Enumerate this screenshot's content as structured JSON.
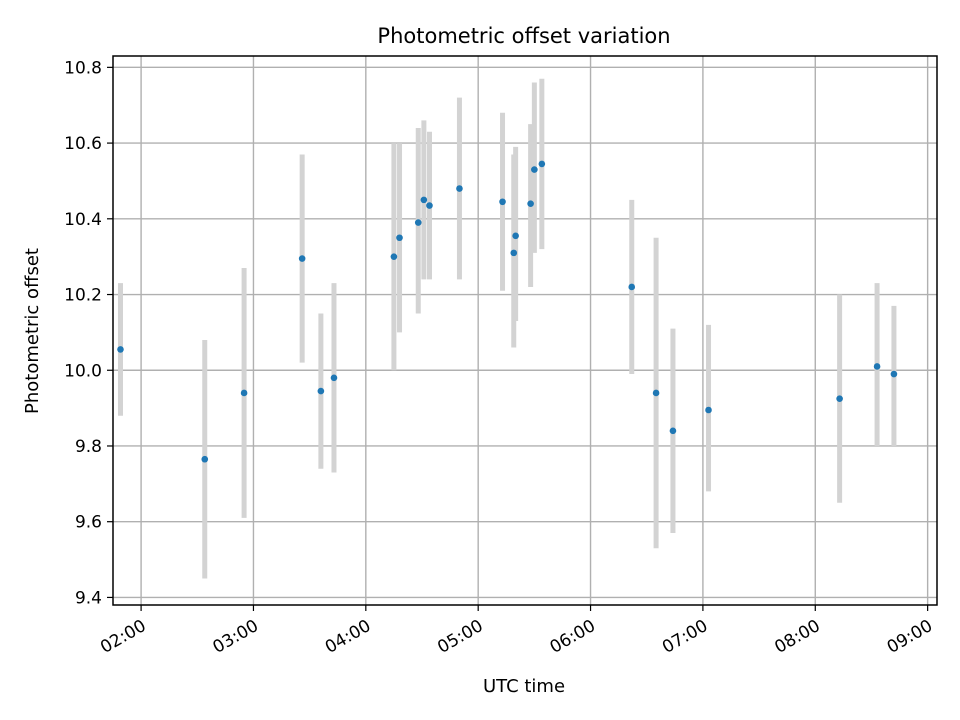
{
  "chart_data": {
    "type": "scatter",
    "title": "Photometric offset variation",
    "xlabel": "UTC time",
    "ylabel": "Photometric offset",
    "xlim": [
      "01:45",
      "09:05"
    ],
    "ylim": [
      9.38,
      10.83
    ],
    "grid": true,
    "x_ticks": [
      "02:00",
      "03:00",
      "04:00",
      "05:00",
      "06:00",
      "07:00",
      "08:00",
      "09:00"
    ],
    "y_ticks": [
      "9.4",
      "9.6",
      "9.8",
      "10.0",
      "10.2",
      "10.4",
      "10.6",
      "10.8"
    ],
    "y_tick_values": [
      9.4,
      9.6,
      9.8,
      10.0,
      10.2,
      10.4,
      10.6,
      10.8
    ],
    "colors": {
      "marker": "#1f77b4",
      "errorbar": "#d3d3d3",
      "grid": "#b0b0b0"
    },
    "series": [
      {
        "points": [
          {
            "x": "01:49",
            "y": 10.055,
            "ylow": 9.88,
            "yhigh": 10.23
          },
          {
            "x": "02:34",
            "y": 9.765,
            "ylow": 9.45,
            "yhigh": 10.08
          },
          {
            "x": "02:55",
            "y": 9.94,
            "ylow": 9.61,
            "yhigh": 10.27
          },
          {
            "x": "03:26",
            "y": 10.295,
            "ylow": 10.02,
            "yhigh": 10.57
          },
          {
            "x": "03:36",
            "y": 9.945,
            "ylow": 9.74,
            "yhigh": 10.15
          },
          {
            "x": "03:43",
            "y": 9.98,
            "ylow": 9.73,
            "yhigh": 10.23
          },
          {
            "x": "04:15",
            "y": 10.3,
            "ylow": 10.0,
            "yhigh": 10.6
          },
          {
            "x": "04:18",
            "y": 10.35,
            "ylow": 10.1,
            "yhigh": 10.6
          },
          {
            "x": "04:28",
            "y": 10.39,
            "ylow": 10.15,
            "yhigh": 10.64
          },
          {
            "x": "04:31",
            "y": 10.45,
            "ylow": 10.24,
            "yhigh": 10.66
          },
          {
            "x": "04:34",
            "y": 10.435,
            "ylow": 10.24,
            "yhigh": 10.63
          },
          {
            "x": "04:50",
            "y": 10.48,
            "ylow": 10.24,
            "yhigh": 10.72
          },
          {
            "x": "05:13",
            "y": 10.445,
            "ylow": 10.21,
            "yhigh": 10.68
          },
          {
            "x": "05:19",
            "y": 10.31,
            "ylow": 10.06,
            "yhigh": 10.57
          },
          {
            "x": "05:20",
            "y": 10.355,
            "ylow": 10.13,
            "yhigh": 10.59
          },
          {
            "x": "05:28",
            "y": 10.44,
            "ylow": 10.22,
            "yhigh": 10.65
          },
          {
            "x": "05:30",
            "y": 10.53,
            "ylow": 10.31,
            "yhigh": 10.76
          },
          {
            "x": "05:34",
            "y": 10.545,
            "ylow": 10.32,
            "yhigh": 10.77
          },
          {
            "x": "06:22",
            "y": 10.22,
            "ylow": 9.99,
            "yhigh": 10.45
          },
          {
            "x": "06:35",
            "y": 9.94,
            "ylow": 9.53,
            "yhigh": 10.35
          },
          {
            "x": "06:44",
            "y": 9.84,
            "ylow": 9.57,
            "yhigh": 10.11
          },
          {
            "x": "07:03",
            "y": 9.895,
            "ylow": 9.68,
            "yhigh": 10.12
          },
          {
            "x": "08:13",
            "y": 9.925,
            "ylow": 9.65,
            "yhigh": 10.2
          },
          {
            "x": "08:33",
            "y": 10.01,
            "ylow": 9.8,
            "yhigh": 10.23
          },
          {
            "x": "08:42",
            "y": 9.99,
            "ylow": 9.8,
            "yhigh": 10.17
          }
        ]
      }
    ]
  }
}
